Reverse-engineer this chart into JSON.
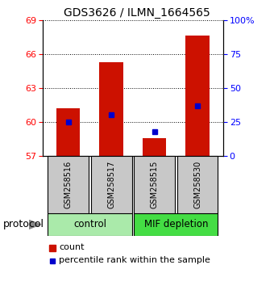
{
  "title": "GDS3626 / ILMN_1664565",
  "samples": [
    "GSM258516",
    "GSM258517",
    "GSM258515",
    "GSM258530"
  ],
  "bar_bottom": 57,
  "bar_tops": [
    61.2,
    65.3,
    58.6,
    67.6
  ],
  "percentile_pct": [
    25,
    30,
    18,
    37
  ],
  "ylim_left": [
    57,
    69
  ],
  "ylim_right": [
    0,
    100
  ],
  "yticks_left": [
    57,
    60,
    63,
    66,
    69
  ],
  "yticks_right": [
    0,
    25,
    50,
    75,
    100
  ],
  "ytick_labels_right": [
    "0",
    "25",
    "50",
    "75",
    "100%"
  ],
  "groups": [
    {
      "label": "control",
      "indices": [
        0,
        1
      ],
      "color": "#AAEAAA"
    },
    {
      "label": "MIF depletion",
      "indices": [
        2,
        3
      ],
      "color": "#44DD44"
    }
  ],
  "bar_color": "#CC1100",
  "dot_color": "#0000CC",
  "sample_box_color": "#C8C8C8",
  "legend_count_label": "count",
  "legend_pct_label": "percentile rank within the sample",
  "protocol_label": "protocol",
  "figsize": [
    3.4,
    3.54
  ],
  "dpi": 100
}
